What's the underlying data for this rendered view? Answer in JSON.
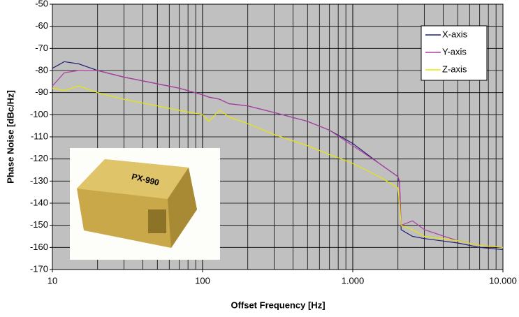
{
  "chart_data": {
    "type": "line",
    "x_label": "Offset Frequency [Hz]",
    "y_label": "Phase Noise [dBc/Hz]",
    "x": [
      10,
      12,
      15,
      20,
      30,
      50,
      70,
      100,
      110,
      130,
      150,
      200,
      300,
      500,
      700,
      1000,
      1500,
      2000,
      2050,
      2100,
      2500,
      3000,
      5000,
      7000,
      10000
    ],
    "series": [
      {
        "name": "X-axis",
        "color": "#1f1f70",
        "values": [
          -79,
          -76,
          -77,
          -80,
          -83,
          -86,
          -88,
          -91,
          -92,
          -93,
          -95,
          -96,
          -99,
          -103,
          -107,
          -113,
          -122,
          -128,
          -131,
          -152,
          -155,
          -156,
          -158,
          -160,
          -161
        ]
      },
      {
        "name": "Y-axis",
        "color": "#b040a0",
        "values": [
          -87,
          -81,
          -80,
          -80,
          -83,
          -86,
          -88,
          -91,
          -92,
          -93,
          -95,
          -96,
          -99,
          -103,
          -107,
          -114,
          -122,
          -128,
          -130,
          -150,
          -148,
          -152,
          -157,
          -159,
          -160
        ]
      },
      {
        "name": "Z-axis",
        "color": "#e8e800",
        "values": [
          -88,
          -89,
          -87,
          -90,
          -93,
          -96,
          -98,
          -100,
          -103,
          -98,
          -101,
          -104,
          -109,
          -114,
          -118,
          -122,
          -128,
          -133,
          -140,
          -150,
          -152,
          -155,
          -157,
          -159,
          -160
        ]
      }
    ],
    "xlim": [
      10,
      10000
    ],
    "xticks": [
      10,
      100,
      {
        "value": 1000,
        "label": "1.000"
      },
      {
        "value": 10000,
        "label": "10.000"
      }
    ],
    "x_log": true,
    "ylim": [
      -170,
      -50
    ],
    "yticks": [
      -170,
      -160,
      -150,
      -140,
      -130,
      -120,
      -110,
      -100,
      -90,
      -80,
      -70,
      -60,
      -50
    ],
    "grid": true,
    "minor_grid": true,
    "legend": "top-right",
    "plot_background": "#c0c0c0",
    "inset_label": "PX-990"
  }
}
